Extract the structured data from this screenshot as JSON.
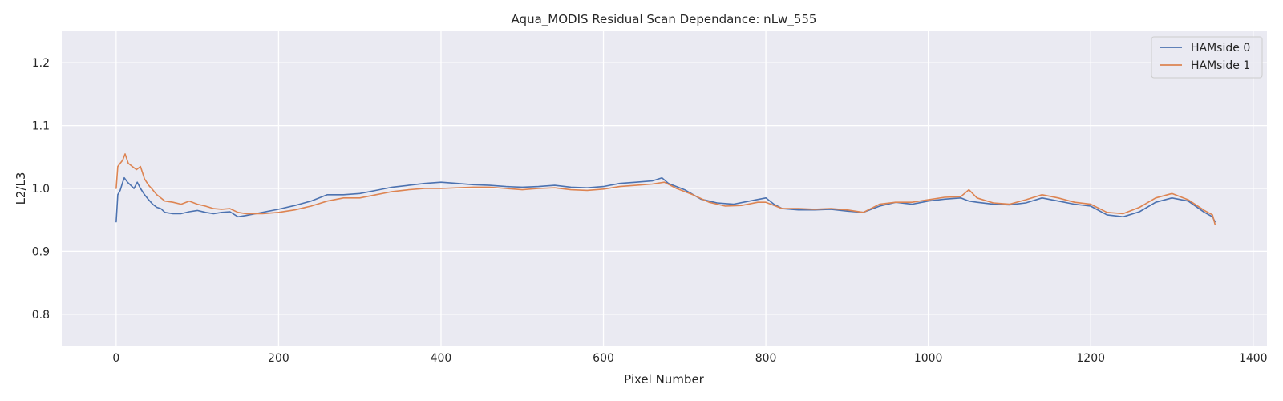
{
  "chart_data": {
    "type": "line",
    "title": "Aqua_MODIS Residual Scan Dependance: nLw_555",
    "xlabel": "Pixel Number",
    "ylabel": "L2/L3",
    "xlim": [
      -67,
      1417
    ],
    "ylim": [
      0.75,
      1.25
    ],
    "x_ticks": [
      0,
      200,
      400,
      600,
      800,
      1000,
      1200,
      1400
    ],
    "x_tick_labels": [
      "0",
      "200",
      "400",
      "600",
      "800",
      "1000",
      "1200",
      "1400"
    ],
    "y_ticks": [
      0.8,
      0.9,
      1.0,
      1.1,
      1.2
    ],
    "y_tick_labels": [
      "0.8",
      "0.9",
      "1.0",
      "1.1",
      "1.2"
    ],
    "grid": true,
    "legend": {
      "position": "top-right"
    },
    "background": "#eaeaf2",
    "series": [
      {
        "name": "HAMside 0",
        "color": "#4c72b0",
        "points": [
          [
            0,
            0.947
          ],
          [
            2,
            0.99
          ],
          [
            5,
            0.997
          ],
          [
            8,
            1.01
          ],
          [
            10,
            1.017
          ],
          [
            14,
            1.01
          ],
          [
            18,
            1.005
          ],
          [
            22,
            1.0
          ],
          [
            26,
            1.01
          ],
          [
            30,
            1.0
          ],
          [
            35,
            0.99
          ],
          [
            40,
            0.982
          ],
          [
            45,
            0.975
          ],
          [
            50,
            0.97
          ],
          [
            55,
            0.968
          ],
          [
            60,
            0.962
          ],
          [
            70,
            0.96
          ],
          [
            80,
            0.96
          ],
          [
            90,
            0.963
          ],
          [
            100,
            0.965
          ],
          [
            110,
            0.962
          ],
          [
            120,
            0.96
          ],
          [
            130,
            0.962
          ],
          [
            140,
            0.963
          ],
          [
            150,
            0.955
          ],
          [
            160,
            0.957
          ],
          [
            180,
            0.962
          ],
          [
            200,
            0.967
          ],
          [
            220,
            0.973
          ],
          [
            240,
            0.98
          ],
          [
            260,
            0.99
          ],
          [
            280,
            0.99
          ],
          [
            300,
            0.992
          ],
          [
            320,
            0.997
          ],
          [
            340,
            1.002
          ],
          [
            360,
            1.005
          ],
          [
            380,
            1.008
          ],
          [
            400,
            1.01
          ],
          [
            420,
            1.008
          ],
          [
            440,
            1.006
          ],
          [
            460,
            1.005
          ],
          [
            480,
            1.003
          ],
          [
            500,
            1.002
          ],
          [
            520,
            1.003
          ],
          [
            540,
            1.005
          ],
          [
            560,
            1.002
          ],
          [
            580,
            1.001
          ],
          [
            600,
            1.003
          ],
          [
            620,
            1.008
          ],
          [
            640,
            1.01
          ],
          [
            660,
            1.012
          ],
          [
            672,
            1.017
          ],
          [
            680,
            1.008
          ],
          [
            700,
            0.998
          ],
          [
            720,
            0.983
          ],
          [
            740,
            0.977
          ],
          [
            760,
            0.975
          ],
          [
            780,
            0.98
          ],
          [
            800,
            0.985
          ],
          [
            810,
            0.975
          ],
          [
            820,
            0.968
          ],
          [
            840,
            0.966
          ],
          [
            860,
            0.966
          ],
          [
            880,
            0.967
          ],
          [
            900,
            0.964
          ],
          [
            920,
            0.962
          ],
          [
            940,
            0.972
          ],
          [
            960,
            0.978
          ],
          [
            980,
            0.975
          ],
          [
            1000,
            0.98
          ],
          [
            1020,
            0.983
          ],
          [
            1040,
            0.985
          ],
          [
            1050,
            0.98
          ],
          [
            1060,
            0.978
          ],
          [
            1080,
            0.975
          ],
          [
            1100,
            0.974
          ],
          [
            1120,
            0.977
          ],
          [
            1140,
            0.985
          ],
          [
            1160,
            0.98
          ],
          [
            1180,
            0.975
          ],
          [
            1200,
            0.972
          ],
          [
            1220,
            0.958
          ],
          [
            1240,
            0.955
          ],
          [
            1260,
            0.963
          ],
          [
            1280,
            0.978
          ],
          [
            1300,
            0.985
          ],
          [
            1320,
            0.98
          ],
          [
            1340,
            0.962
          ],
          [
            1350,
            0.955
          ],
          [
            1353,
            0.947
          ]
        ]
      },
      {
        "name": "HAMside 1",
        "color": "#dd8452",
        "points": [
          [
            0,
            1.0
          ],
          [
            2,
            1.035
          ],
          [
            5,
            1.04
          ],
          [
            8,
            1.045
          ],
          [
            11,
            1.055
          ],
          [
            15,
            1.04
          ],
          [
            20,
            1.035
          ],
          [
            25,
            1.03
          ],
          [
            30,
            1.035
          ],
          [
            35,
            1.015
          ],
          [
            40,
            1.005
          ],
          [
            45,
            0.998
          ],
          [
            50,
            0.99
          ],
          [
            55,
            0.985
          ],
          [
            60,
            0.98
          ],
          [
            70,
            0.978
          ],
          [
            80,
            0.975
          ],
          [
            90,
            0.98
          ],
          [
            100,
            0.975
          ],
          [
            110,
            0.972
          ],
          [
            120,
            0.968
          ],
          [
            130,
            0.967
          ],
          [
            140,
            0.968
          ],
          [
            150,
            0.962
          ],
          [
            160,
            0.96
          ],
          [
            180,
            0.96
          ],
          [
            200,
            0.962
          ],
          [
            220,
            0.966
          ],
          [
            240,
            0.972
          ],
          [
            260,
            0.98
          ],
          [
            280,
            0.985
          ],
          [
            300,
            0.985
          ],
          [
            320,
            0.99
          ],
          [
            340,
            0.995
          ],
          [
            360,
            0.998
          ],
          [
            380,
            1.0
          ],
          [
            400,
            1.0
          ],
          [
            420,
            1.001
          ],
          [
            440,
            1.002
          ],
          [
            460,
            1.002
          ],
          [
            480,
            1.0
          ],
          [
            500,
            0.998
          ],
          [
            520,
            1.0
          ],
          [
            540,
            1.001
          ],
          [
            560,
            0.998
          ],
          [
            580,
            0.997
          ],
          [
            600,
            0.999
          ],
          [
            620,
            1.003
          ],
          [
            640,
            1.005
          ],
          [
            660,
            1.007
          ],
          [
            675,
            1.01
          ],
          [
            690,
            1.0
          ],
          [
            710,
            0.99
          ],
          [
            730,
            0.978
          ],
          [
            750,
            0.972
          ],
          [
            770,
            0.973
          ],
          [
            790,
            0.978
          ],
          [
            800,
            0.978
          ],
          [
            820,
            0.968
          ],
          [
            840,
            0.968
          ],
          [
            860,
            0.967
          ],
          [
            880,
            0.968
          ],
          [
            900,
            0.966
          ],
          [
            920,
            0.962
          ],
          [
            940,
            0.975
          ],
          [
            960,
            0.978
          ],
          [
            980,
            0.978
          ],
          [
            1000,
            0.982
          ],
          [
            1020,
            0.986
          ],
          [
            1040,
            0.987
          ],
          [
            1050,
            0.998
          ],
          [
            1060,
            0.985
          ],
          [
            1080,
            0.977
          ],
          [
            1100,
            0.975
          ],
          [
            1120,
            0.982
          ],
          [
            1140,
            0.99
          ],
          [
            1160,
            0.985
          ],
          [
            1180,
            0.978
          ],
          [
            1200,
            0.975
          ],
          [
            1220,
            0.962
          ],
          [
            1240,
            0.96
          ],
          [
            1260,
            0.97
          ],
          [
            1280,
            0.985
          ],
          [
            1300,
            0.992
          ],
          [
            1320,
            0.982
          ],
          [
            1340,
            0.965
          ],
          [
            1350,
            0.958
          ],
          [
            1353,
            0.943
          ]
        ]
      }
    ]
  }
}
